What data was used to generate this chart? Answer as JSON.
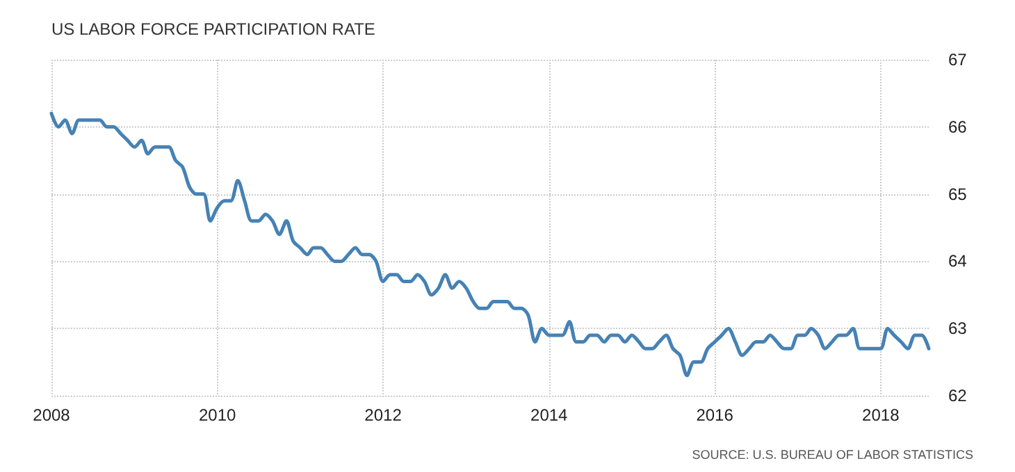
{
  "chart_data": {
    "type": "line",
    "title": "US LABOR FORCE PARTICIPATION RATE",
    "annotations": [
      "SOURCE: U.S. BUREAU OF LABOR STATISTICS"
    ],
    "x": [
      "2008-01",
      "2008-02",
      "2008-03",
      "2008-04",
      "2008-05",
      "2008-06",
      "2008-07",
      "2008-08",
      "2008-09",
      "2008-10",
      "2008-11",
      "2008-12",
      "2009-01",
      "2009-02",
      "2009-03",
      "2009-04",
      "2009-05",
      "2009-06",
      "2009-07",
      "2009-08",
      "2009-09",
      "2009-10",
      "2009-11",
      "2009-12",
      "2010-01",
      "2010-02",
      "2010-03",
      "2010-04",
      "2010-05",
      "2010-06",
      "2010-07",
      "2010-08",
      "2010-09",
      "2010-10",
      "2010-11",
      "2010-12",
      "2011-01",
      "2011-02",
      "2011-03",
      "2011-04",
      "2011-05",
      "2011-06",
      "2011-07",
      "2011-08",
      "2011-09",
      "2011-10",
      "2011-11",
      "2011-12",
      "2012-01",
      "2012-02",
      "2012-03",
      "2012-04",
      "2012-05",
      "2012-06",
      "2012-07",
      "2012-08",
      "2012-09",
      "2012-10",
      "2012-11",
      "2012-12",
      "2013-01",
      "2013-02",
      "2013-03",
      "2013-04",
      "2013-05",
      "2013-06",
      "2013-07",
      "2013-08",
      "2013-09",
      "2013-10",
      "2013-11",
      "2013-12",
      "2014-01",
      "2014-02",
      "2014-03",
      "2014-04",
      "2014-05",
      "2014-06",
      "2014-07",
      "2014-08",
      "2014-09",
      "2014-10",
      "2014-11",
      "2014-12",
      "2015-01",
      "2015-02",
      "2015-03",
      "2015-04",
      "2015-05",
      "2015-06",
      "2015-07",
      "2015-08",
      "2015-09",
      "2015-10",
      "2015-11",
      "2015-12",
      "2016-01",
      "2016-02",
      "2016-03",
      "2016-04",
      "2016-05",
      "2016-06",
      "2016-07",
      "2016-08",
      "2016-09",
      "2016-10",
      "2016-11",
      "2016-12",
      "2017-01",
      "2017-02",
      "2017-03",
      "2017-04",
      "2017-05",
      "2017-06",
      "2017-07",
      "2017-08",
      "2017-09",
      "2017-10",
      "2017-11",
      "2017-12",
      "2018-01",
      "2018-02",
      "2018-03",
      "2018-04",
      "2018-05",
      "2018-06",
      "2018-07",
      "2018-08"
    ],
    "series": [
      {
        "color": "#4682b4",
        "values": [
          66.2,
          66.0,
          66.1,
          65.9,
          66.1,
          66.1,
          66.1,
          66.1,
          66.0,
          66.0,
          65.9,
          65.8,
          65.7,
          65.8,
          65.6,
          65.7,
          65.7,
          65.7,
          65.5,
          65.4,
          65.1,
          65.0,
          65.0,
          64.6,
          64.8,
          64.9,
          64.9,
          65.2,
          64.9,
          64.6,
          64.6,
          64.7,
          64.6,
          64.4,
          64.6,
          64.3,
          64.2,
          64.1,
          64.2,
          64.2,
          64.1,
          64.0,
          64.0,
          64.1,
          64.2,
          64.1,
          64.1,
          64.0,
          63.7,
          63.8,
          63.8,
          63.7,
          63.7,
          63.8,
          63.7,
          63.5,
          63.6,
          63.8,
          63.6,
          63.7,
          63.6,
          63.4,
          63.3,
          63.3,
          63.4,
          63.4,
          63.4,
          63.3,
          63.3,
          63.2,
          62.8,
          63.0,
          62.9,
          62.9,
          62.9,
          63.1,
          62.8,
          62.8,
          62.9,
          62.9,
          62.8,
          62.9,
          62.9,
          62.8,
          62.9,
          62.8,
          62.7,
          62.7,
          62.8,
          62.9,
          62.7,
          62.6,
          62.3,
          62.5,
          62.5,
          62.7,
          62.8,
          62.9,
          63.0,
          62.8,
          62.6,
          62.7,
          62.8,
          62.8,
          62.9,
          62.8,
          62.7,
          62.7,
          62.9,
          62.9,
          63.0,
          62.9,
          62.7,
          62.8,
          62.9,
          62.9,
          63.0,
          62.7,
          62.7,
          62.7,
          62.7,
          63.0,
          62.9,
          62.8,
          62.7,
          62.9,
          62.9,
          62.7
        ]
      }
    ],
    "xlim": [
      "2008-01",
      "2018-08"
    ],
    "xticks": [
      "2008",
      "2010",
      "2012",
      "2014",
      "2016",
      "2018"
    ],
    "ylim": [
      62,
      67
    ],
    "yticks": [
      62,
      63,
      64,
      65,
      66,
      67
    ],
    "grid": true,
    "marker": "none",
    "line_style": "solid"
  }
}
